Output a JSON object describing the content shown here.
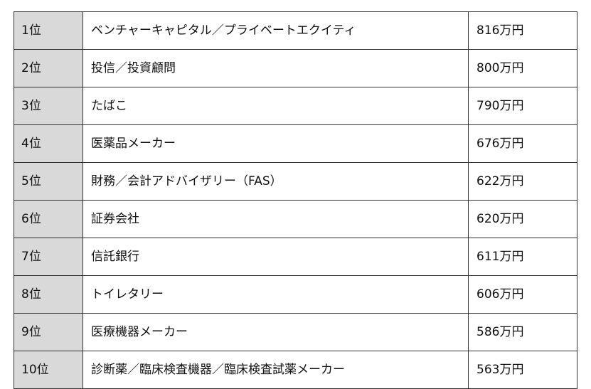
{
  "colors": {
    "rank_column_background": "#d9d9d9",
    "border": "#333333",
    "text": "#111111"
  },
  "rows": [
    {
      "rank": "1位",
      "industry": "ベンチャーキャピタル／プライベートエクイティ",
      "salary": "816万円"
    },
    {
      "rank": "2位",
      "industry": "投信／投資顧問",
      "salary": "800万円"
    },
    {
      "rank": "3位",
      "industry": "たばこ",
      "salary": "790万円"
    },
    {
      "rank": "4位",
      "industry": "医薬品メーカー",
      "salary": "676万円"
    },
    {
      "rank": "5位",
      "industry": "財務／会計アドバイザリー（FAS）",
      "salary": "622万円"
    },
    {
      "rank": "6位",
      "industry": "証券会社",
      "salary": "620万円"
    },
    {
      "rank": "7位",
      "industry": "信託銀行",
      "salary": "611万円"
    },
    {
      "rank": "8位",
      "industry": "トイレタリー",
      "salary": "606万円"
    },
    {
      "rank": "9位",
      "industry": "医療機器メーカー",
      "salary": "586万円"
    },
    {
      "rank": "10位",
      "industry": "診断薬／臨床検査機器／臨床検査試薬メーカー",
      "salary": "563万円"
    }
  ]
}
